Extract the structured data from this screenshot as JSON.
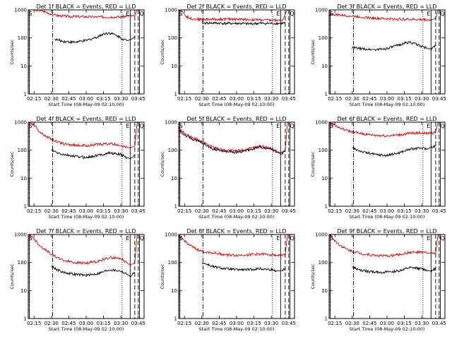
{
  "figure": {
    "background": "#ffffff"
  },
  "colors": {
    "events": "#000000",
    "lld": "#e00000",
    "axis": "#000000"
  },
  "x_axis": {
    "label": "Start Time (08-May-09 02:10:00)",
    "ticks": [
      "02:15",
      "02:30",
      "02:45",
      "03:00",
      "03:15",
      "03:30",
      "03:45"
    ],
    "tick_minutes": [
      5,
      20,
      35,
      50,
      65,
      80,
      95
    ],
    "range_minutes": [
      0,
      100
    ]
  },
  "y_axis": {
    "label": "Counts/sec",
    "scale": "log",
    "ticks": [
      "1",
      "10",
      "100",
      "1000"
    ],
    "tick_values": [
      1,
      10,
      100,
      1000
    ],
    "range": [
      1,
      1000
    ]
  },
  "markers": {
    "S": {
      "label": "S",
      "minutes": 1,
      "style": "solid"
    },
    "E": {
      "label": "E",
      "minutes": 88,
      "style": "solid"
    },
    "Q": {
      "label": "Q",
      "minutes": 96,
      "style": "solid"
    },
    "dash_dot": {
      "minutes": 21,
      "style": "dash-dot"
    },
    "dotted": {
      "minutes": 81,
      "style": "dotted"
    },
    "dashed": [
      {
        "minutes": 92
      },
      {
        "minutes": 95
      }
    ]
  },
  "chart_data": [
    {
      "type": "line",
      "title": "Det 1f BLACK = Events, RED = LLD",
      "xlabel": "Start Time (08-May-09 02:10:00)",
      "ylabel": "Counts/sec",
      "ylim": [
        1,
        1000
      ],
      "yscale": "log",
      "series": [
        {
          "name": "LLD",
          "color": "#e00000",
          "x": [
            0,
            5,
            10,
            15,
            20,
            23,
            30,
            40,
            50,
            60,
            70,
            80,
            85,
            88,
            92,
            94,
            95,
            100
          ],
          "values": [
            1100,
            1000,
            950,
            850,
            700,
            650,
            600,
            580,
            570,
            560,
            560,
            560,
            600,
            620,
            600,
            1000,
            1100,
            1100
          ]
        },
        {
          "name": "Events",
          "color": "#000000",
          "x": [
            23,
            30,
            40,
            50,
            60,
            65,
            70,
            75,
            80,
            85,
            88,
            90,
            92
          ],
          "values": [
            90,
            75,
            70,
            80,
            110,
            140,
            150,
            130,
            100,
            80,
            85,
            95,
            110
          ]
        }
      ]
    },
    {
      "type": "line",
      "title": "Det 2f BLACK = Events, RED = LLD",
      "xlabel": "Start Time (08-May-09 02:10:00)",
      "ylabel": "Counts/sec",
      "ylim": [
        1,
        1000
      ],
      "yscale": "log",
      "series": [
        {
          "name": "LLD",
          "color": "#e00000",
          "x": [
            0,
            3,
            6,
            10,
            15,
            20,
            30,
            40,
            50,
            60,
            70,
            80,
            88,
            90,
            92,
            94,
            96,
            100
          ],
          "values": [
            1000,
            900,
            600,
            500,
            470,
            460,
            460,
            470,
            470,
            450,
            440,
            430,
            420,
            430,
            700,
            1000,
            1100,
            1100
          ]
        },
        {
          "name": "Events",
          "color": "#000000",
          "x": [
            20,
            30,
            40,
            50,
            60,
            70,
            80,
            88,
            92
          ],
          "values": [
            340,
            340,
            330,
            330,
            320,
            330,
            330,
            330,
            340
          ]
        }
      ]
    },
    {
      "type": "line",
      "title": "Det 3f BLACK = Events, RED = LLD",
      "xlabel": "Start Time (08-May-09 02:10:00)",
      "ylabel": "Counts/sec",
      "ylim": [
        1,
        1000
      ],
      "yscale": "log",
      "series": [
        {
          "name": "LLD",
          "color": "#e00000",
          "x": [
            0,
            10,
            20,
            30,
            40,
            50,
            60,
            70,
            80,
            88,
            90,
            92,
            94,
            96,
            100
          ],
          "values": [
            700,
            650,
            600,
            550,
            500,
            480,
            470,
            460,
            450,
            440,
            460,
            500,
            1000,
            1100,
            1100
          ]
        },
        {
          "name": "Events",
          "color": "#000000",
          "x": [
            20,
            30,
            40,
            50,
            60,
            65,
            70,
            75,
            80,
            85,
            88,
            92
          ],
          "values": [
            45,
            40,
            38,
            42,
            55,
            65,
            70,
            60,
            50,
            42,
            40,
            55
          ]
        }
      ]
    },
    {
      "type": "line",
      "title": "Det 4f BLACK = Events, RED = LLD",
      "xlabel": "Start Time (08-May-09 02:10:00)",
      "ylabel": "Counts/sec",
      "ylim": [
        1,
        1000
      ],
      "yscale": "log",
      "series": [
        {
          "name": "LLD",
          "color": "#e00000",
          "x": [
            0,
            5,
            10,
            15,
            20,
            25,
            30,
            40,
            50,
            60,
            70,
            80,
            85,
            88,
            90,
            92,
            94,
            96,
            100
          ],
          "values": [
            1100,
            800,
            450,
            320,
            250,
            200,
            170,
            150,
            145,
            160,
            170,
            150,
            130,
            120,
            130,
            140,
            1000,
            1100,
            1100
          ]
        },
        {
          "name": "Events",
          "color": "#000000",
          "x": [
            20,
            25,
            30,
            40,
            50,
            60,
            70,
            80,
            85,
            88,
            90,
            92
          ],
          "values": [
            100,
            80,
            70,
            60,
            55,
            65,
            80,
            70,
            55,
            50,
            55,
            70
          ]
        }
      ]
    },
    {
      "type": "line",
      "title": "Det 5f BLACK = Events, RED = LLD",
      "xlabel": "Start Time (08-May-09 02:10:00)",
      "ylabel": "Counts/sec",
      "ylim": [
        1,
        1000
      ],
      "yscale": "log",
      "series": [
        {
          "name": "LLD",
          "color": "#e00000",
          "x": [
            0,
            5,
            10,
            15,
            20,
            25,
            30,
            40,
            50,
            60,
            70,
            80,
            85,
            88,
            90,
            92,
            94,
            96,
            100
          ],
          "values": [
            600,
            400,
            300,
            250,
            200,
            160,
            130,
            100,
            95,
            110,
            140,
            120,
            90,
            80,
            90,
            100,
            1000,
            1100,
            1100
          ]
        },
        {
          "name": "Events",
          "color": "#000000",
          "x": [
            0,
            5,
            10,
            15,
            20,
            25,
            30,
            40,
            50,
            60,
            70,
            80,
            85,
            88,
            92
          ],
          "values": [
            500,
            350,
            270,
            220,
            180,
            140,
            110,
            90,
            85,
            100,
            130,
            110,
            85,
            75,
            90
          ]
        }
      ]
    },
    {
      "type": "line",
      "title": "Det 6f BLACK = Events, RED = LLD",
      "xlabel": "Start Time (08-May-09 02:10:00)",
      "ylabel": "Counts/sec",
      "ylim": [
        1,
        1000
      ],
      "yscale": "log",
      "series": [
        {
          "name": "LLD",
          "color": "#e00000",
          "x": [
            0,
            10,
            20,
            30,
            40,
            50,
            60,
            70,
            80,
            88,
            92,
            94,
            96,
            100
          ],
          "values": [
            1000,
            600,
            450,
            380,
            340,
            330,
            350,
            400,
            420,
            400,
            450,
            1000,
            1100,
            1100
          ]
        },
        {
          "name": "Events",
          "color": "#000000",
          "x": [
            20,
            25,
            30,
            40,
            50,
            60,
            70,
            80,
            85,
            88,
            92
          ],
          "values": [
            120,
            100,
            85,
            70,
            65,
            80,
            110,
            120,
            110,
            130,
            140
          ]
        }
      ]
    },
    {
      "type": "line",
      "title": "Det 7f BLACK = Events, RED = LLD",
      "xlabel": "Start Time (08-May-09 02:10:00)",
      "ylabel": "Counts/sec",
      "ylim": [
        1,
        1000
      ],
      "yscale": "log",
      "series": [
        {
          "name": "LLD",
          "color": "#e00000",
          "x": [
            0,
            5,
            10,
            15,
            20,
            25,
            30,
            40,
            50,
            60,
            70,
            80,
            85,
            88,
            90,
            92,
            94,
            96,
            100
          ],
          "values": [
            1100,
            700,
            400,
            280,
            200,
            150,
            120,
            100,
            95,
            110,
            150,
            140,
            100,
            80,
            90,
            100,
            1000,
            1100,
            1100
          ]
        },
        {
          "name": "Events",
          "color": "#000000",
          "x": [
            20,
            25,
            30,
            40,
            50,
            60,
            70,
            80,
            85,
            88,
            92
          ],
          "values": [
            75,
            55,
            45,
            38,
            35,
            40,
            55,
            50,
            38,
            32,
            45
          ]
        }
      ]
    },
    {
      "type": "line",
      "title": "Det 8f BLACK = Events, RED = LLD",
      "xlabel": "Start Time (08-May-09 02:10:00)",
      "ylabel": "Counts/sec",
      "ylim": [
        1,
        1000
      ],
      "yscale": "log",
      "series": [
        {
          "name": "LLD",
          "color": "#e00000",
          "x": [
            0,
            5,
            10,
            15,
            20,
            30,
            40,
            50,
            60,
            70,
            80,
            88,
            92,
            94,
            96,
            100
          ],
          "values": [
            900,
            600,
            400,
            300,
            250,
            220,
            190,
            180,
            190,
            200,
            190,
            180,
            190,
            1000,
            1100,
            1100
          ]
        },
        {
          "name": "Events",
          "color": "#000000",
          "x": [
            20,
            30,
            40,
            50,
            60,
            70,
            80,
            85,
            88,
            92
          ],
          "values": [
            100,
            70,
            60,
            55,
            55,
            60,
            55,
            50,
            50,
            60
          ]
        }
      ]
    },
    {
      "type": "line",
      "title": "Det 9f BLACK = Events, RED = LLD",
      "xlabel": "Start Time (08-May-09 02:10:00)",
      "ylabel": "Counts/sec",
      "ylim": [
        1,
        1000
      ],
      "yscale": "log",
      "series": [
        {
          "name": "LLD",
          "color": "#e00000",
          "x": [
            0,
            5,
            10,
            15,
            20,
            30,
            40,
            50,
            60,
            70,
            80,
            85,
            88,
            92,
            94,
            96,
            100
          ],
          "values": [
            1100,
            600,
            400,
            300,
            250,
            200,
            180,
            170,
            190,
            230,
            230,
            220,
            210,
            220,
            1000,
            1100,
            1100
          ]
        },
        {
          "name": "Events",
          "color": "#000000",
          "x": [
            20,
            25,
            30,
            40,
            50,
            60,
            70,
            80,
            85,
            88,
            92
          ],
          "values": [
            70,
            55,
            50,
            45,
            45,
            50,
            65,
            60,
            52,
            50,
            60
          ]
        }
      ]
    }
  ]
}
